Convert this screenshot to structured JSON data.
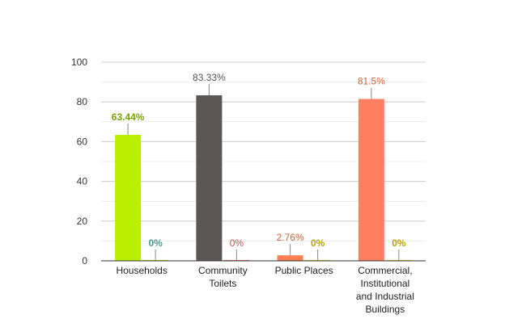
{
  "chart_data": {
    "type": "bar",
    "categories": [
      [
        "Households"
      ],
      [
        "Community",
        "Toilets"
      ],
      [
        "Public Places"
      ],
      [
        "Commercial,",
        "Institutional",
        "and Industrial",
        "Buildings"
      ]
    ],
    "ylim": [
      0,
      100
    ],
    "yticks": [
      0,
      20,
      40,
      60,
      80,
      100
    ],
    "grid": true,
    "bars": [
      [
        {
          "value": 63.44,
          "label": "63.44%",
          "color": "#b8f000",
          "label_color": "#7aa300",
          "label_bold": true
        },
        {
          "value": 0,
          "label": "0%",
          "color": "#b8f000",
          "label_color": "#4a9a8a",
          "label_bold": true
        }
      ],
      [
        {
          "value": 83.33,
          "label": "83.33%",
          "color": "#5c5756",
          "label_color": "#555555",
          "label_bold": false
        },
        {
          "value": 0,
          "label": "0%",
          "color": "#f08080",
          "label_color": "#c0504d",
          "label_bold": false
        }
      ],
      [
        {
          "value": 2.76,
          "label": "2.76%",
          "color": "#ff7f50",
          "label_color": "#c8623a",
          "label_bold": false
        },
        {
          "value": 0,
          "label": "0%",
          "color": "#f0e040",
          "label_color": "#b8a000",
          "label_bold": true
        }
      ],
      [
        {
          "value": 81.5,
          "label": "81.5%",
          "color": "#ff8060",
          "label_color": "#c8623a",
          "label_bold": false
        },
        {
          "value": 0,
          "label": "0%",
          "color": "#f0e040",
          "label_color": "#b8a000",
          "label_bold": true
        }
      ]
    ]
  }
}
